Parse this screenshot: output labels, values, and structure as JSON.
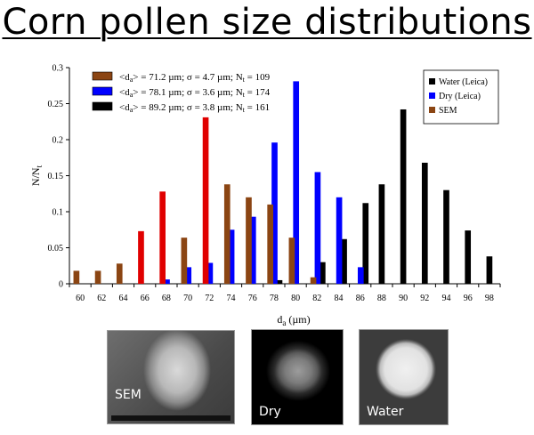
{
  "title": "Corn pollen size distributions",
  "chart_data": {
    "type": "bar",
    "xlabel": "d",
    "xlabel_sub": "a",
    "xlabel_unit": " (µm)",
    "ylabel": "N/N",
    "ylabel_sub": "t",
    "ylim": [
      0,
      0.3
    ],
    "yticks": [
      "0",
      "0.05",
      "0.1",
      "0.15",
      "0.2",
      "0.25",
      "0.3"
    ],
    "xticks": [
      "60",
      "62",
      "64",
      "66",
      "68",
      "70",
      "72",
      "74",
      "76",
      "78",
      "80",
      "82",
      "84",
      "86",
      "88",
      "90",
      "92",
      "94",
      "96",
      "98"
    ],
    "series": [
      {
        "name": "Water (Leica)",
        "color": "#000000",
        "x": [
          78,
          82,
          84,
          86,
          88,
          90,
          92,
          94,
          96,
          98
        ],
        "values": [
          0.005,
          0.03,
          0.062,
          0.112,
          0.138,
          0.242,
          0.168,
          0.13,
          0.074,
          0.038
        ]
      },
      {
        "name": "Dry (Leica)",
        "color": "#0000ff",
        "x": [
          68,
          70,
          72,
          74,
          76,
          78,
          80,
          82,
          84,
          86
        ],
        "values": [
          0.006,
          0.023,
          0.029,
          0.075,
          0.093,
          0.196,
          0.281,
          0.155,
          0.12,
          0.023
        ]
      },
      {
        "name": "SEM",
        "color": "#8b4513",
        "x": [
          60,
          62,
          64,
          66,
          68,
          70,
          72,
          74,
          76,
          78,
          80,
          82
        ],
        "values": [
          0.018,
          0.018,
          0.028,
          0.073,
          0.128,
          0.064,
          0.231,
          0.138,
          0.12,
          0.11,
          0.064,
          0.009
        ],
        "painted": [
          {
            "x": 66,
            "color": "#e00000"
          },
          {
            "x": 68,
            "color": "#e00000"
          },
          {
            "x": 72,
            "color": "#e00000"
          }
        ]
      }
    ],
    "legend_inner": [
      {
        "color": "#8b4513",
        "pre": "<d",
        "sub": "a",
        "post": "> = 71.2 µm; σ = 4.7 µm; N",
        "sub2": "t",
        "tail": " = 109"
      },
      {
        "color": "#0000ff",
        "pre": "<d",
        "sub": "a",
        "post": "> = 78.1 µm; σ = 3.6 µm; N",
        "sub2": "t",
        "tail": " = 174"
      },
      {
        "color": "#000000",
        "pre": "<d",
        "sub": "a",
        "post": "> = 89.2 µm; σ = 3.8 µm; N",
        "sub2": "t",
        "tail": " = 161"
      }
    ],
    "legend_placement": "top-right",
    "grid": false
  },
  "images": {
    "sem_label": "SEM",
    "dry_label": "Dry",
    "water_label": "Water"
  }
}
